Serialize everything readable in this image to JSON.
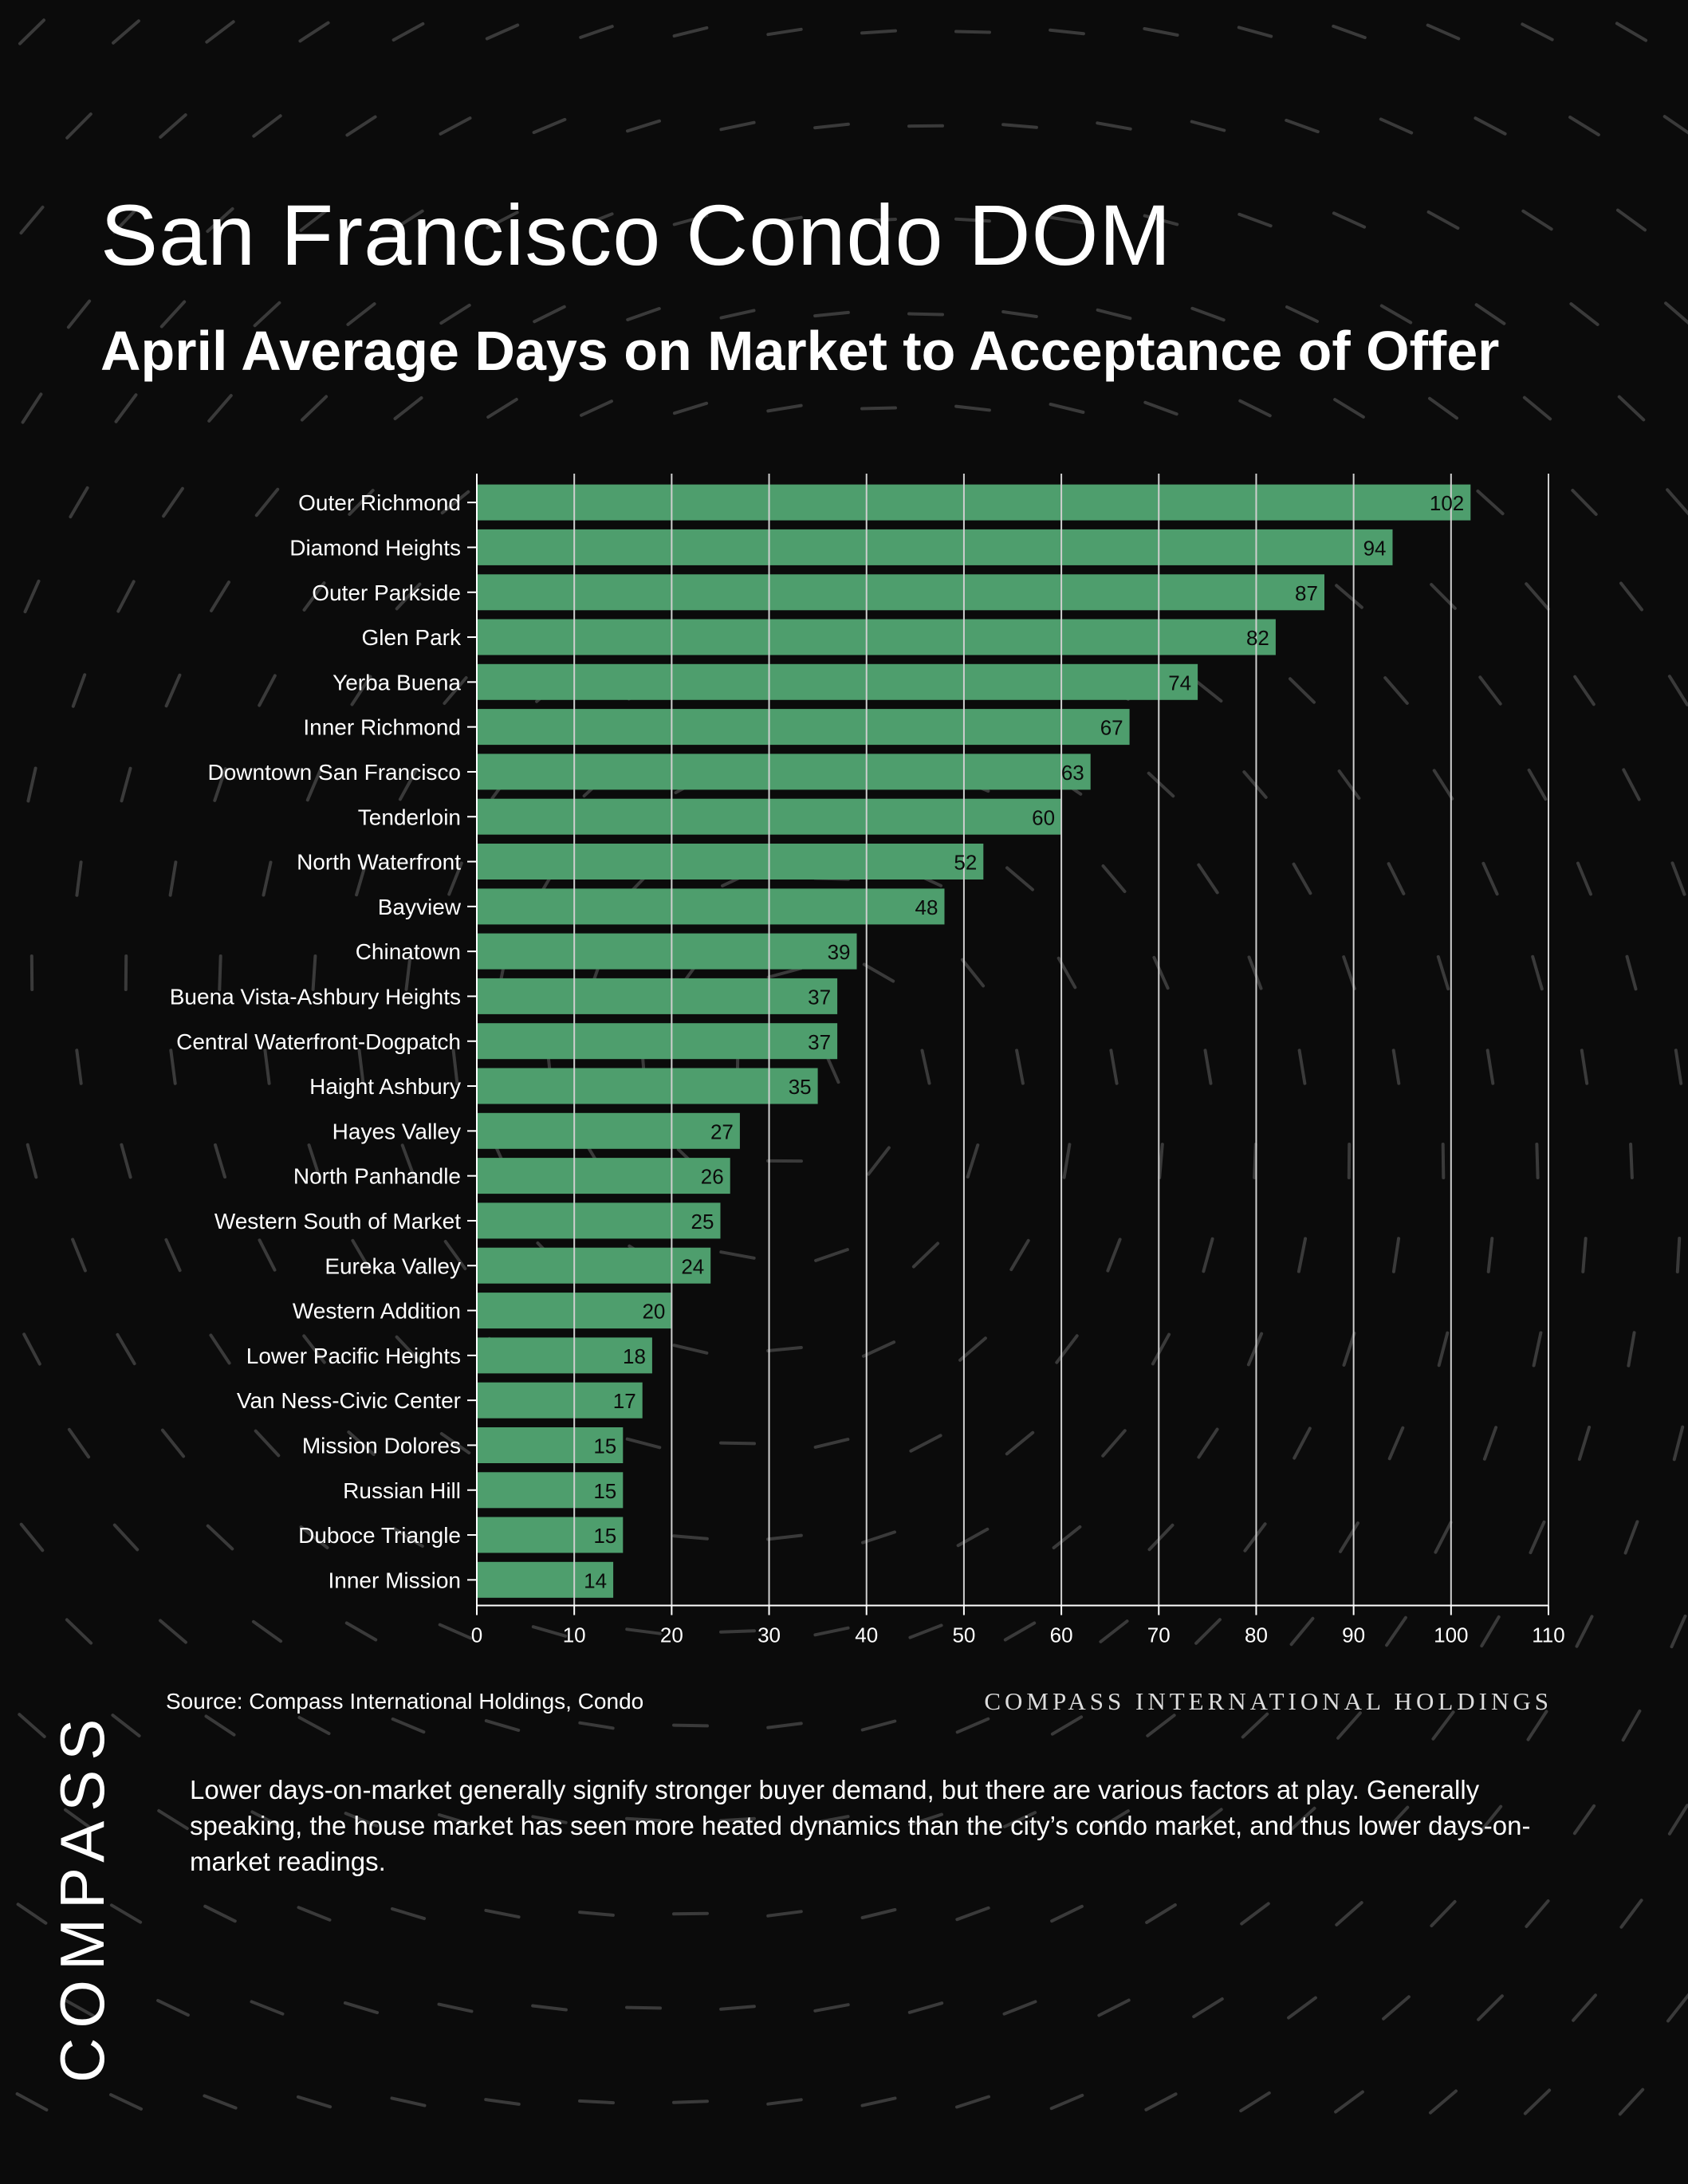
{
  "title": "San Francisco Condo DOM",
  "subtitle": "April Average Days on Market to Acceptance of Offer",
  "source": "Source: Compass International Holdings, Condo",
  "brand_line": "COMPASS INTERNATIONAL HOLDINGS",
  "note": "Lower days-on-market generally signify stronger buyer demand, but there are various factors at play. Generally speaking, the house market has seen more heated dynamics than the city’s condo market, and thus lower days-on-market readings.",
  "logo": "COMPASS",
  "colors": {
    "background": "#0b0b0b",
    "bar": "#4e9e6d",
    "bar_label": "#0b0b0b",
    "text": "#ffffff",
    "grid": "#cfcfcf"
  },
  "chart_data": {
    "type": "bar",
    "orientation": "horizontal",
    "categories": [
      "Outer Richmond",
      "Diamond Heights",
      "Outer Parkside",
      "Glen Park",
      "Yerba Buena",
      "Inner Richmond",
      "Downtown San Francisco",
      "Tenderloin",
      "North Waterfront",
      "Bayview",
      "Chinatown",
      "Buena Vista-Ashbury Heights",
      "Central Waterfront-Dogpatch",
      "Haight Ashbury",
      "Hayes Valley",
      "North Panhandle",
      "Western South of Market",
      "Eureka Valley",
      "Western Addition",
      "Lower Pacific Heights",
      "Van Ness-Civic Center",
      "Mission Dolores",
      "Russian Hill",
      "Duboce Triangle",
      "Inner Mission"
    ],
    "values": [
      102,
      94,
      87,
      82,
      74,
      67,
      63,
      60,
      52,
      48,
      39,
      37,
      37,
      35,
      27,
      26,
      25,
      24,
      20,
      18,
      17,
      15,
      15,
      15,
      14
    ],
    "xlim": [
      0,
      110
    ],
    "xticks": [
      0,
      10,
      20,
      30,
      40,
      50,
      60,
      70,
      80,
      90,
      100,
      110
    ],
    "grid": "vertical",
    "data_labels": true
  }
}
